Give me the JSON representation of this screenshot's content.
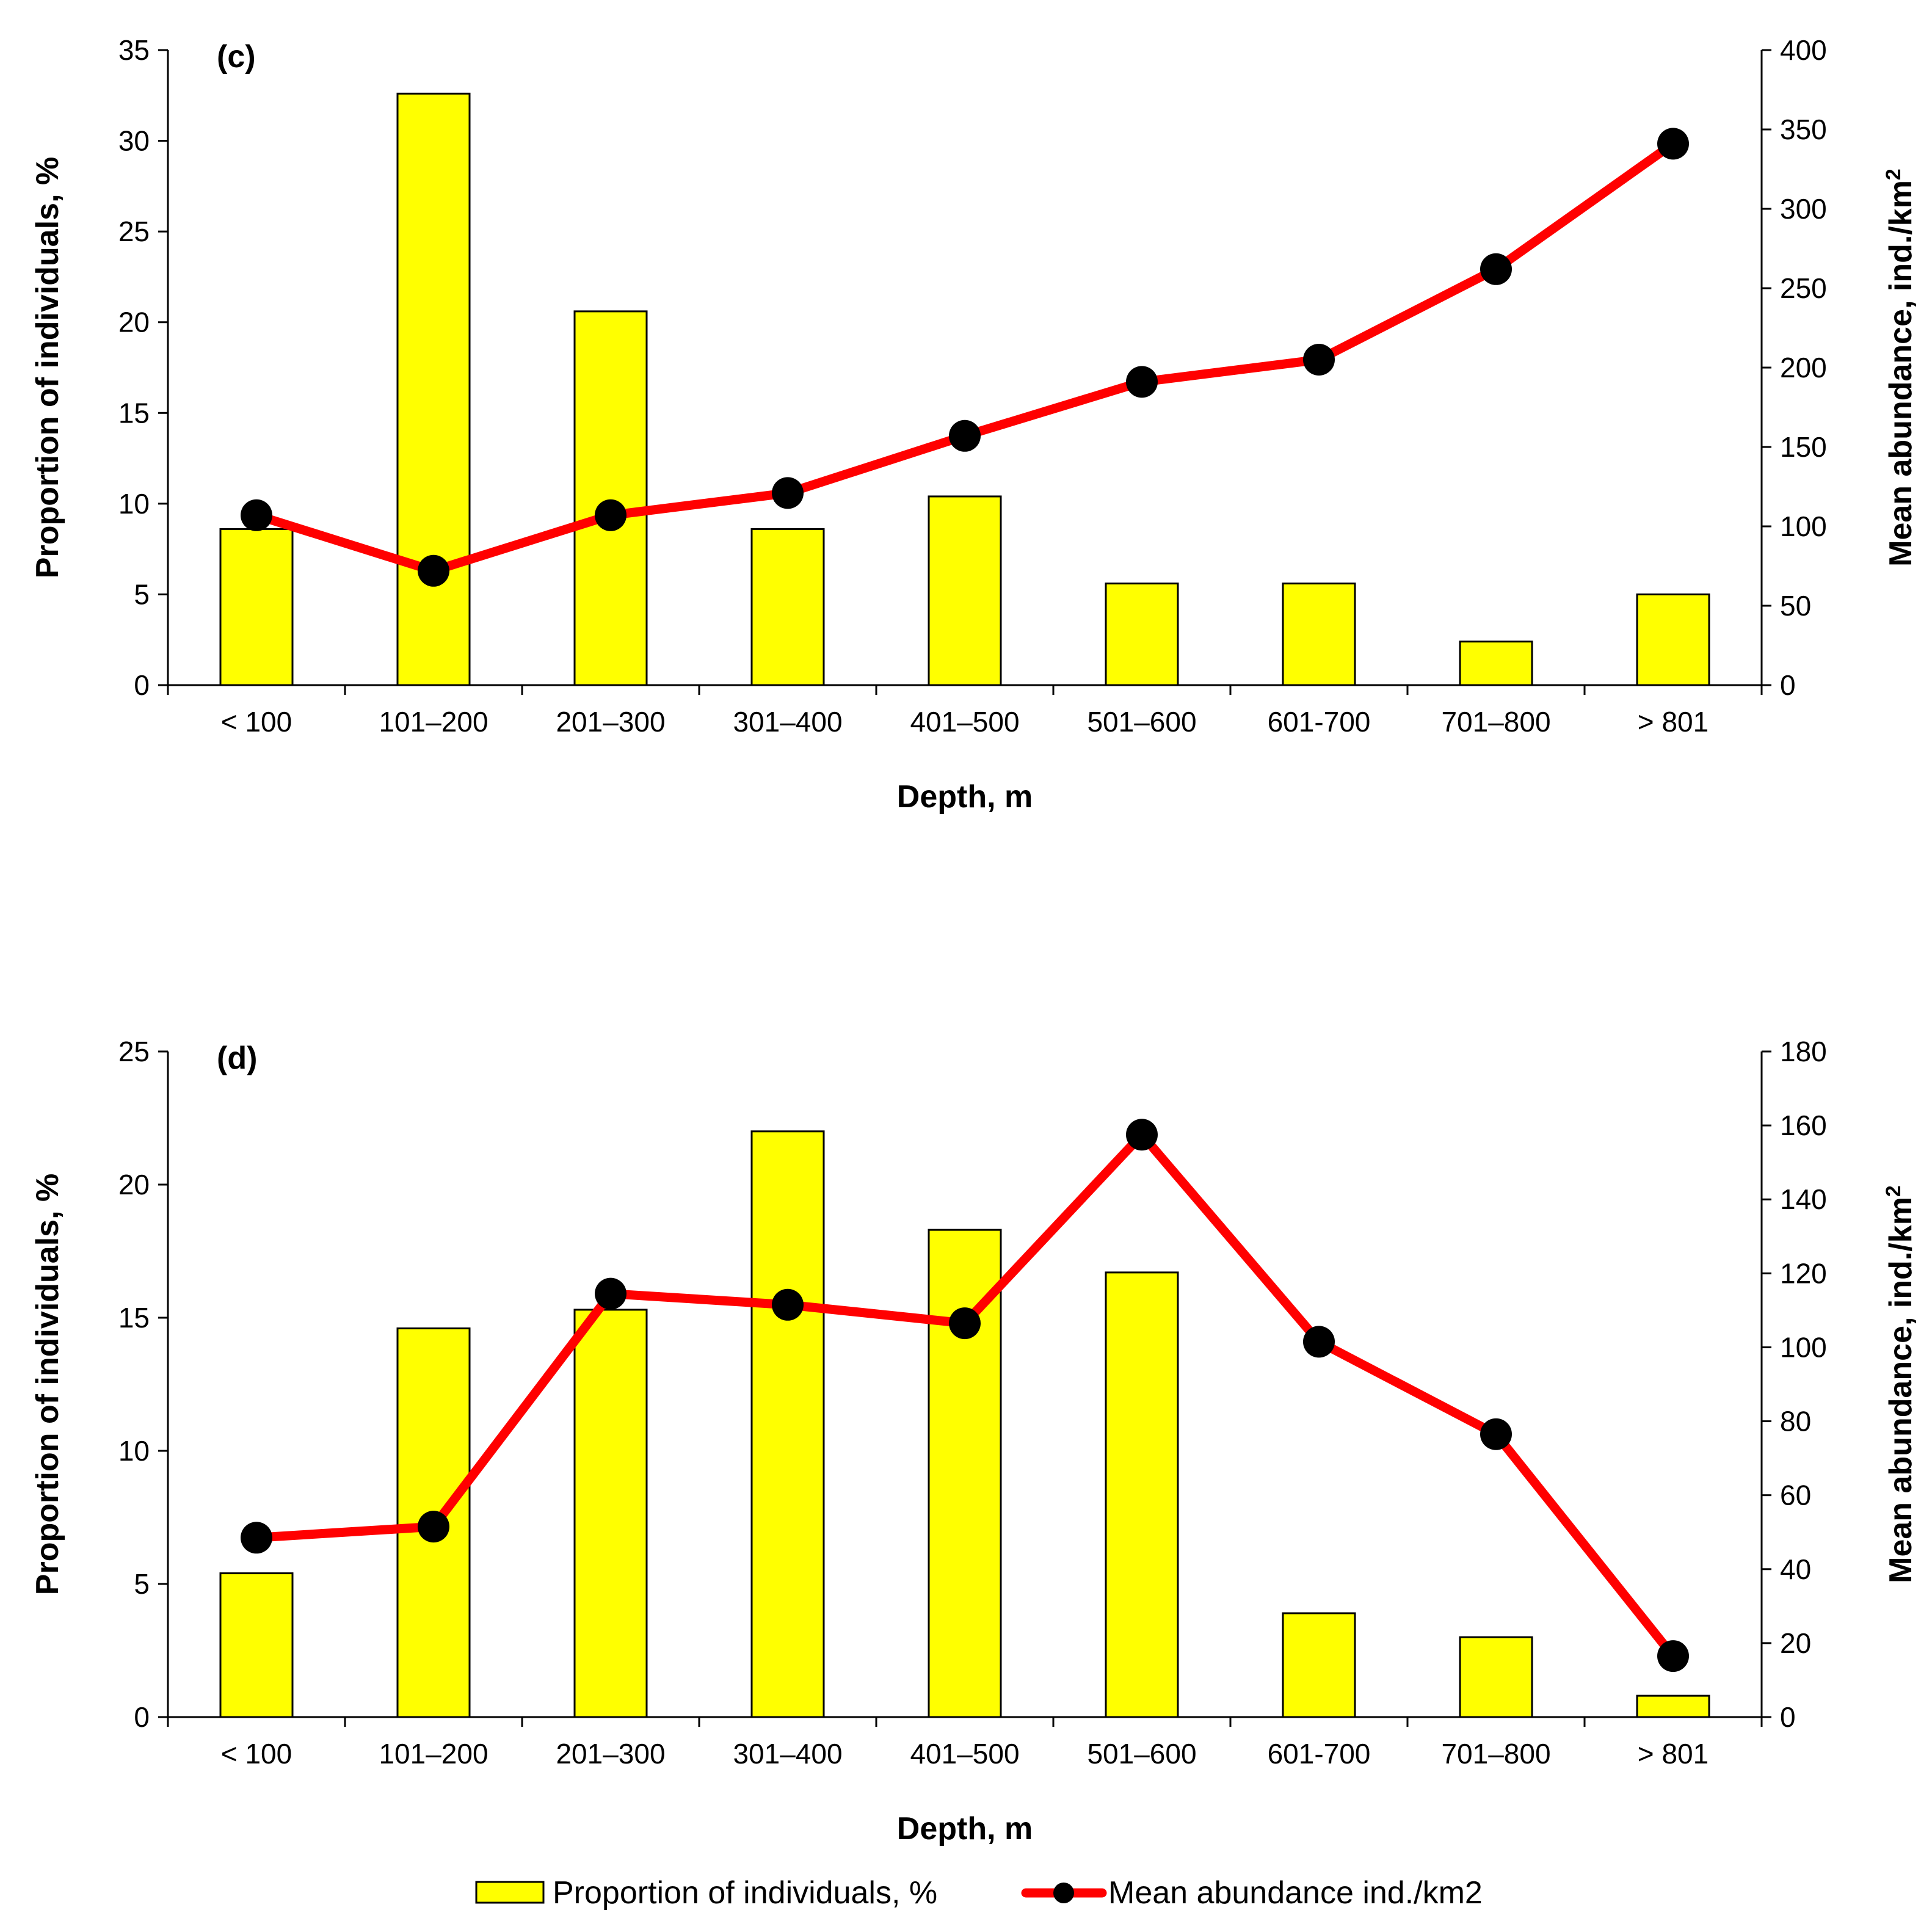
{
  "colors": {
    "bar_fill": "#ffff00",
    "bar_stroke": "#000000",
    "line": "#ff0000",
    "marker": "#000000",
    "axis": "#000000"
  },
  "chart_data": [
    {
      "type": "bar",
      "panel_label": "(c)",
      "categories": [
        "< 100",
        "101–200",
        "201–300",
        "301–400",
        "401–500",
        "501–600",
        "601-700",
        "701–800",
        "> 801"
      ],
      "xlabel": "Depth, m",
      "ylabel_left": "Proportion of individuals, %",
      "ylabel_right_parts": [
        "Mean abundance, ind./km",
        "2"
      ],
      "ylim_left": [
        0,
        35
      ],
      "yticks_left": [
        0,
        5,
        10,
        15,
        20,
        25,
        30,
        35
      ],
      "ylim_right": [
        0,
        400
      ],
      "yticks_right": [
        0,
        50,
        100,
        150,
        200,
        250,
        300,
        350,
        400
      ],
      "series": [
        {
          "name": "Proportion of individuals, %",
          "type": "bar",
          "axis": "left",
          "values": [
            8.6,
            32.6,
            20.6,
            8.6,
            10.4,
            5.6,
            5.6,
            2.4,
            5.0
          ]
        },
        {
          "name": "Mean abundance ind./km2",
          "type": "line",
          "axis": "right",
          "values": [
            107,
            72,
            107,
            121,
            157,
            191,
            205,
            262,
            341
          ]
        }
      ]
    },
    {
      "type": "bar",
      "panel_label": "(d)",
      "categories": [
        "< 100",
        "101–200",
        "201–300",
        "301–400",
        "401–500",
        "501–600",
        "601-700",
        "701–800",
        "> 801"
      ],
      "xlabel": "Depth, m",
      "ylabel_left": "Proportion of individuals, %",
      "ylabel_right_parts": [
        "Mean abundance, ind./km",
        "2"
      ],
      "ylim_left": [
        0,
        25
      ],
      "yticks_left": [
        0,
        5,
        10,
        15,
        20,
        25
      ],
      "ylim_right": [
        0,
        180
      ],
      "yticks_right": [
        0,
        20,
        40,
        60,
        80,
        100,
        120,
        140,
        160,
        180
      ],
      "series": [
        {
          "name": "Proportion of individuals, %",
          "type": "bar",
          "axis": "left",
          "values": [
            5.4,
            14.6,
            15.3,
            22.0,
            18.3,
            16.7,
            3.9,
            3.0,
            0.8
          ]
        },
        {
          "name": "Mean abundance ind./km2",
          "type": "line",
          "axis": "right",
          "values": [
            48.5,
            51.5,
            114.5,
            111.5,
            106.5,
            157.5,
            101.5,
            76.5,
            16.5
          ]
        }
      ]
    }
  ],
  "legend": {
    "bar_label": "Proportion of individuals, %",
    "line_label": "Mean abundance ind./km2"
  }
}
